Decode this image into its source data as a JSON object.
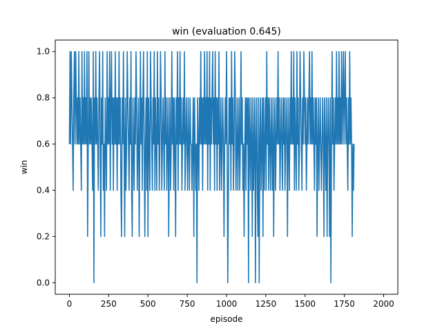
{
  "chart_data": {
    "type": "line",
    "title": "win (evaluation 0.645)",
    "xlabel": "episode",
    "ylabel": "win",
    "xlim": [
      -90,
      2090
    ],
    "ylim": [
      -0.05,
      1.05
    ],
    "xticks": [
      0,
      250,
      500,
      750,
      1000,
      1250,
      1500,
      1750,
      2000
    ],
    "xtick_labels": [
      "0",
      "250",
      "500",
      "750",
      "1000",
      "1250",
      "1500",
      "1750",
      "2000"
    ],
    "yticks": [
      0.0,
      0.2,
      0.4,
      0.6,
      0.8,
      1.0
    ],
    "ytick_labels": [
      "0.0",
      "0.2",
      "0.4",
      "0.6",
      "0.8",
      "1.0"
    ],
    "grid": false,
    "legend": "none",
    "series_color": "#1f77b4",
    "series": [
      {
        "x_start": 0,
        "x_step": 4,
        "values": [
          0.6,
          1.0,
          0.6,
          1.0,
          0.8,
          0.6,
          0.4,
          0.8,
          1.0,
          0.6,
          1.0,
          0.8,
          0.6,
          0.8,
          0.6,
          1.0,
          0.6,
          0.8,
          0.6,
          0.4,
          1.0,
          0.6,
          0.8,
          0.6,
          1.0,
          0.6,
          0.8,
          0.6,
          1.0,
          0.2,
          0.6,
          1.0,
          0.6,
          0.8,
          0.6,
          0.8,
          0.6,
          0.4,
          1.0,
          0.0,
          0.8,
          0.6,
          1.0,
          0.6,
          0.8,
          0.6,
          0.4,
          0.8,
          1.0,
          0.6,
          0.2,
          0.8,
          0.6,
          1.0,
          0.4,
          0.6,
          0.2,
          0.8,
          0.6,
          0.4,
          1.0,
          0.6,
          0.8,
          0.6,
          1.0,
          0.4,
          0.8,
          1.0,
          0.6,
          0.8,
          0.4,
          0.8,
          0.6,
          1.0,
          0.6,
          0.8,
          0.4,
          0.8,
          0.6,
          1.0,
          0.6,
          0.8,
          0.4,
          0.2,
          0.8,
          0.6,
          1.0,
          0.6,
          0.2,
          0.8,
          0.4,
          0.6,
          1.0,
          0.8,
          0.6,
          0.4,
          0.8,
          0.6,
          1.0,
          0.4,
          0.2,
          0.8,
          0.6,
          0.4,
          0.8,
          0.6,
          1.0,
          0.8,
          0.4,
          0.6,
          0.8,
          0.2,
          0.6,
          1.0,
          0.6,
          0.8,
          0.4,
          0.8,
          1.0,
          0.6,
          0.2,
          0.6,
          0.8,
          0.4,
          1.0,
          0.2,
          0.8,
          0.6,
          0.4,
          1.0,
          0.8,
          0.6,
          0.4,
          0.8,
          0.6,
          1.0,
          0.4,
          0.8,
          0.6,
          0.4,
          1.0,
          0.6,
          0.8,
          0.4,
          0.6,
          1.0,
          0.8,
          0.4,
          0.6,
          0.8,
          0.6,
          0.4,
          1.0,
          0.6,
          0.8,
          0.4,
          0.6,
          0.8,
          0.2,
          0.6,
          0.8,
          0.4,
          0.6,
          1.0,
          0.6,
          0.8,
          0.4,
          0.8,
          0.6,
          0.2,
          0.8,
          0.6,
          1.0,
          0.4,
          0.8,
          0.6,
          1.0,
          0.6,
          0.8,
          0.4,
          0.6,
          0.8,
          0.6,
          1.0,
          0.4,
          0.6,
          0.8,
          0.6,
          0.4,
          0.8,
          0.6,
          0.4,
          0.8,
          0.6,
          0.6,
          0.4,
          0.6,
          0.8,
          0.2,
          0.8,
          0.6,
          0.4,
          0.6,
          0.0,
          0.8,
          0.6,
          0.4,
          0.8,
          0.6,
          1.0,
          0.6,
          0.8,
          0.4,
          0.8,
          0.6,
          1.0,
          0.6,
          0.8,
          0.6,
          1.0,
          0.4,
          0.8,
          0.6,
          1.0,
          0.4,
          0.8,
          0.6,
          0.8,
          1.0,
          0.6,
          0.8,
          0.4,
          1.0,
          0.6,
          0.8,
          0.4,
          0.8,
          0.6,
          1.0,
          0.4,
          0.6,
          0.8,
          0.4,
          0.6,
          0.8,
          0.6,
          0.2,
          0.6,
          0.8,
          0.6,
          1.0,
          0.6,
          0.0,
          0.4,
          0.8,
          0.6,
          0.8,
          0.4,
          1.0,
          0.6,
          0.8,
          0.4,
          0.6,
          1.0,
          0.8,
          0.4,
          0.6,
          0.8,
          0.4,
          0.6,
          0.8,
          0.4,
          0.6,
          1.0,
          0.6,
          0.8,
          0.4,
          0.6,
          0.2,
          0.6,
          0.8,
          0.4,
          0.8,
          0.6,
          0.8,
          0.0,
          0.8,
          0.6,
          0.4,
          0.8,
          0.6,
          0.2,
          0.8,
          0.4,
          0.6,
          0.8,
          0.0,
          0.6,
          0.8,
          0.4,
          0.2,
          0.8,
          0.0,
          0.6,
          0.8,
          0.4,
          0.6,
          0.8,
          0.2,
          0.8,
          0.4,
          0.6,
          0.8,
          0.4,
          1.0,
          0.6,
          0.8,
          0.4,
          0.8,
          0.6,
          0.4,
          0.8,
          0.6,
          0.4,
          0.8,
          0.2,
          0.6,
          0.8,
          0.4,
          0.6,
          0.8,
          0.6,
          1.0,
          0.6,
          0.8,
          0.4,
          0.6,
          0.8,
          0.6,
          0.4,
          0.8,
          0.6,
          0.8,
          0.4,
          0.6,
          0.8,
          0.6,
          0.2,
          0.8,
          0.6,
          0.4,
          0.8,
          0.6,
          1.0,
          0.6,
          0.8,
          0.6,
          1.0,
          0.4,
          0.8,
          0.6,
          0.4,
          1.0,
          0.6,
          0.8,
          0.4,
          0.6,
          1.0,
          0.8,
          0.6,
          0.4,
          0.8,
          0.6,
          1.0,
          0.8,
          0.6,
          0.8,
          0.4,
          0.6,
          0.8,
          0.6,
          0.8,
          1.0,
          0.6,
          0.8,
          0.6,
          1.0,
          0.6,
          0.8,
          0.6,
          0.4,
          0.8,
          0.6,
          0.8,
          0.2,
          0.6,
          0.8,
          0.4,
          0.6,
          0.8,
          0.6,
          0.4,
          0.6,
          0.8,
          0.6,
          0.2,
          0.8,
          0.6,
          0.4,
          0.8,
          0.2,
          0.6,
          0.8,
          0.6,
          0.2,
          0.8,
          0.0,
          0.6,
          1.0,
          0.6,
          0.8,
          0.4,
          0.6,
          0.8,
          0.6,
          1.0,
          0.6,
          0.8,
          0.6,
          1.0,
          0.6,
          0.8,
          0.6,
          1.0,
          0.6,
          0.8,
          1.0,
          0.6,
          0.8,
          1.0,
          0.6,
          0.8,
          0.6,
          0.4,
          0.8,
          0.6,
          1.0,
          0.6,
          0.8,
          0.6,
          0.2,
          0.6,
          0.4,
          0.6
        ]
      }
    ]
  }
}
